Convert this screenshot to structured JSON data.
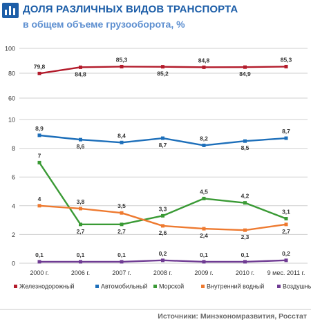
{
  "header": {
    "title": "ДОЛЯ РАЗЛИЧНЫХ ВИДОВ ТРАНСПОРТА",
    "subtitle": "в общем объеме грузооборота, %",
    "icon": "bar-chart-icon"
  },
  "footer": {
    "source": "Источники: Минэкономразвития, Росстат"
  },
  "chart_data": {
    "type": "line",
    "categories": [
      "2000 г.",
      "2006 г.",
      "2007 г.",
      "2008 г.",
      "2009 г.",
      "2010 г.",
      "9 мес. 2011 г."
    ],
    "upper_panel": {
      "ylim": [
        60,
        100
      ],
      "ticks": [
        60,
        80,
        100
      ]
    },
    "lower_panel": {
      "ylim": [
        0,
        10
      ],
      "ticks": [
        0,
        2,
        4,
        6,
        8,
        10
      ]
    },
    "grid": "horizontal",
    "legend_position": "bottom",
    "series": [
      {
        "name": "Железнодорожный",
        "panel": "upper",
        "color": "#b31b2b",
        "values": [
          79.8,
          84.8,
          85.3,
          85.2,
          84.8,
          84.9,
          85.3
        ],
        "labels": [
          "79,8",
          "84,8",
          "85,3",
          "85,2",
          "84,8",
          "84,9",
          "85,3"
        ],
        "label_pos": [
          "above",
          "below",
          "above",
          "below",
          "above",
          "below",
          "above"
        ]
      },
      {
        "name": "Автомобильный",
        "panel": "lower",
        "color": "#1d6fba",
        "values": [
          8.9,
          8.6,
          8.4,
          8.7,
          8.2,
          8.5,
          8.7
        ],
        "labels": [
          "8,9",
          "8,6",
          "8,4",
          "8,7",
          "8,2",
          "8,5",
          "8,7"
        ],
        "label_pos": [
          "above",
          "below",
          "above",
          "below",
          "above",
          "below",
          "above"
        ]
      },
      {
        "name": "Морской",
        "panel": "lower",
        "color": "#3a9a35",
        "values": [
          7.0,
          2.7,
          2.7,
          3.3,
          4.5,
          4.2,
          3.1
        ],
        "labels": [
          "7",
          "2,7",
          "2,7",
          "3,3",
          "4,5",
          "4,2",
          "3,1"
        ],
        "label_pos": [
          "above",
          "below",
          "below",
          "above",
          "above",
          "above",
          "above"
        ]
      },
      {
        "name": "Внутренний водный",
        "panel": "lower",
        "color": "#ee7a30",
        "values": [
          4.0,
          3.8,
          3.5,
          2.6,
          2.4,
          2.3,
          2.7
        ],
        "labels": [
          "4",
          "3,8",
          "3,5",
          "2,6",
          "2,4",
          "2,3",
          "2,7"
        ],
        "label_pos": [
          "above",
          "above",
          "above",
          "below",
          "below",
          "below",
          "below"
        ]
      },
      {
        "name": "Воздушный",
        "panel": "lower",
        "color": "#6f3b93",
        "values": [
          0.1,
          0.1,
          0.1,
          0.2,
          0.1,
          0.1,
          0.2
        ],
        "labels": [
          "0,1",
          "0,1",
          "0,1",
          "0,2",
          "0,1",
          "0,1",
          "0,2"
        ],
        "label_pos": [
          "above",
          "above",
          "above",
          "above",
          "above",
          "above",
          "above"
        ]
      }
    ]
  }
}
